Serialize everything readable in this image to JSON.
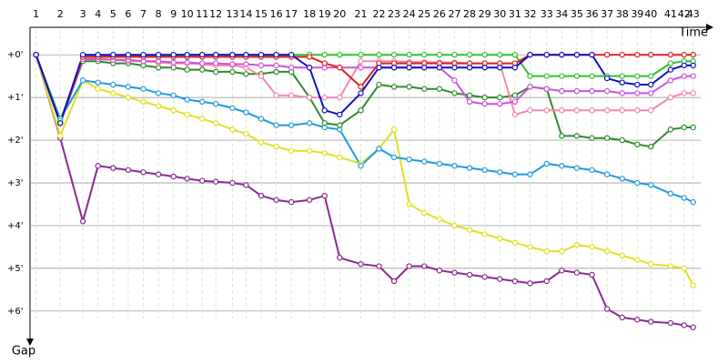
{
  "chart_data": {
    "type": "line",
    "x_label": "Time",
    "y_label": "Gap",
    "xlim": [
      0,
      45
    ],
    "ylim": [
      6.6,
      -0.6
    ],
    "grid": true,
    "xticks": [
      {
        "value": 0.4,
        "label": "1"
      },
      {
        "value": 2.0,
        "label": "2"
      },
      {
        "value": 3.5,
        "label": "3"
      },
      {
        "value": 4.5,
        "label": "4"
      },
      {
        "value": 5.5,
        "label": "5"
      },
      {
        "value": 6.5,
        "label": "6"
      },
      {
        "value": 7.5,
        "label": "7"
      },
      {
        "value": 8.5,
        "label": "8"
      },
      {
        "value": 9.5,
        "label": "9"
      },
      {
        "value": 10.4,
        "label": "10"
      },
      {
        "value": 11.4,
        "label": "11"
      },
      {
        "value": 12.3,
        "label": "12"
      },
      {
        "value": 13.4,
        "label": "13"
      },
      {
        "value": 14.3,
        "label": "14"
      },
      {
        "value": 15.3,
        "label": "15"
      },
      {
        "value": 16.3,
        "label": "16"
      },
      {
        "value": 17.3,
        "label": "17"
      },
      {
        "value": 18.5,
        "label": "18"
      },
      {
        "value": 19.5,
        "label": "19"
      },
      {
        "value": 20.5,
        "label": "20"
      },
      {
        "value": 21.9,
        "label": "21"
      },
      {
        "value": 23.1,
        "label": "22"
      },
      {
        "value": 24.1,
        "label": "23"
      },
      {
        "value": 25.1,
        "label": "24"
      },
      {
        "value": 26.1,
        "label": "25"
      },
      {
        "value": 27.1,
        "label": "26"
      },
      {
        "value": 28.1,
        "label": "27"
      },
      {
        "value": 29.1,
        "label": "28"
      },
      {
        "value": 30.1,
        "label": "29"
      },
      {
        "value": 31.1,
        "label": "30"
      },
      {
        "value": 32.1,
        "label": "31"
      },
      {
        "value": 33.1,
        "label": "32"
      },
      {
        "value": 34.2,
        "label": "33"
      },
      {
        "value": 35.2,
        "label": "34"
      },
      {
        "value": 36.2,
        "label": "35"
      },
      {
        "value": 37.2,
        "label": "36"
      },
      {
        "value": 38.2,
        "label": "37"
      },
      {
        "value": 39.2,
        "label": "38"
      },
      {
        "value": 40.2,
        "label": "39"
      },
      {
        "value": 41.1,
        "label": "40"
      },
      {
        "value": 42.4,
        "label": "41"
      },
      {
        "value": 43.3,
        "label": "42"
      },
      {
        "value": 43.9,
        "label": "43"
      }
    ],
    "yticks": [
      {
        "value": 0,
        "label": "+0'"
      },
      {
        "value": 1,
        "label": "+1'"
      },
      {
        "value": 2,
        "label": "+2'"
      },
      {
        "value": 3,
        "label": "+3'"
      },
      {
        "value": 4,
        "label": "+4'"
      },
      {
        "value": 5,
        "label": "+5'"
      },
      {
        "value": 6,
        "label": "+6'"
      }
    ],
    "x": [
      0.4,
      2.0,
      3.5,
      4.5,
      5.5,
      6.5,
      7.5,
      8.5,
      9.5,
      10.4,
      11.4,
      12.3,
      13.4,
      14.3,
      15.3,
      16.3,
      17.3,
      18.5,
      19.5,
      20.5,
      21.9,
      23.1,
      24.1,
      25.1,
      26.1,
      27.1,
      28.1,
      29.1,
      30.1,
      31.1,
      32.1,
      33.1,
      34.2,
      35.2,
      36.2,
      37.2,
      38.2,
      39.2,
      40.2,
      41.1,
      42.4,
      43.3,
      43.9
    ],
    "series": [
      {
        "color": "#8b2a8f",
        "values": [
          0,
          1.95,
          3.9,
          2.6,
          2.65,
          2.7,
          2.75,
          2.8,
          2.85,
          2.9,
          2.95,
          2.97,
          3.0,
          3.05,
          3.3,
          3.4,
          3.45,
          3.4,
          3.3,
          4.75,
          4.9,
          4.95,
          5.3,
          4.95,
          4.95,
          5.05,
          5.1,
          5.15,
          5.2,
          5.25,
          5.3,
          5.35,
          5.3,
          5.05,
          5.1,
          5.15,
          5.95,
          6.15,
          6.2,
          6.25,
          6.28,
          6.33,
          6.38
        ]
      },
      {
        "color": "#e0e020",
        "values": [
          0,
          1.9,
          0.6,
          0.8,
          0.9,
          1.0,
          1.1,
          1.2,
          1.3,
          1.4,
          1.5,
          1.6,
          1.75,
          1.85,
          2.05,
          2.15,
          2.25,
          2.25,
          2.3,
          2.4,
          2.55,
          2.2,
          1.75,
          3.5,
          3.7,
          3.85,
          4.0,
          4.1,
          4.2,
          4.3,
          4.4,
          4.5,
          4.6,
          4.6,
          4.45,
          4.5,
          4.6,
          4.7,
          4.8,
          4.9,
          4.95,
          5.0,
          5.4
        ]
      },
      {
        "color": "#1e9be0",
        "values": [
          0,
          1.5,
          0.6,
          0.65,
          0.7,
          0.75,
          0.8,
          0.9,
          0.95,
          1.05,
          1.1,
          1.15,
          1.25,
          1.35,
          1.5,
          1.65,
          1.65,
          1.6,
          1.7,
          1.75,
          2.6,
          2.2,
          2.4,
          2.45,
          2.5,
          2.55,
          2.6,
          2.65,
          2.7,
          2.75,
          2.8,
          2.8,
          2.55,
          2.6,
          2.65,
          2.7,
          2.8,
          2.9,
          3.0,
          3.05,
          3.25,
          3.35,
          3.45
        ]
      },
      {
        "color": "#2e8b2e",
        "values": [
          0,
          1.6,
          0.15,
          0.15,
          0.2,
          0.2,
          0.25,
          0.3,
          0.3,
          0.35,
          0.35,
          0.4,
          0.4,
          0.45,
          0.45,
          0.4,
          0.4,
          1.0,
          1.6,
          1.65,
          1.3,
          0.7,
          0.75,
          0.75,
          0.8,
          0.8,
          0.9,
          0.95,
          1.0,
          1.0,
          0.95,
          0.75,
          0.8,
          1.9,
          1.9,
          1.95,
          1.95,
          2.0,
          2.1,
          2.15,
          1.75,
          1.7,
          1.7
        ]
      },
      {
        "color": "#f48aa8",
        "values": [
          0,
          1.6,
          0.1,
          0.1,
          0.12,
          0.15,
          0.15,
          0.18,
          0.2,
          0.2,
          0.22,
          0.25,
          0.25,
          0.3,
          0.5,
          0.95,
          0.95,
          1.0,
          1.0,
          1.0,
          0.15,
          0.15,
          0.15,
          0.17,
          0.17,
          0.18,
          0.18,
          0.2,
          0.2,
          0.2,
          1.4,
          1.3,
          1.3,
          1.3,
          1.3,
          1.3,
          1.3,
          1.3,
          1.3,
          1.3,
          1.0,
          0.9,
          0.9
        ]
      },
      {
        "color": "#d050e0",
        "values": [
          0,
          1.6,
          0.1,
          0.1,
          0.12,
          0.12,
          0.15,
          0.15,
          0.18,
          0.18,
          0.2,
          0.2,
          0.22,
          0.22,
          0.25,
          0.25,
          0.3,
          0.3,
          0.3,
          0.3,
          0.3,
          0.3,
          0.3,
          0.3,
          0.3,
          0.3,
          0.6,
          1.1,
          1.15,
          1.15,
          1.1,
          0.75,
          0.8,
          0.85,
          0.85,
          0.85,
          0.85,
          0.9,
          0.9,
          0.9,
          0.6,
          0.5,
          0.5
        ]
      },
      {
        "color": "#30c030",
        "values": [
          0,
          1.55,
          0.05,
          0.03,
          0.02,
          0.02,
          0.02,
          0.02,
          0,
          0,
          0,
          0,
          0,
          0,
          0,
          0,
          0,
          0,
          0,
          0,
          0,
          0,
          0,
          0,
          0,
          0,
          0,
          0,
          0,
          0,
          0,
          0.5,
          0.5,
          0.5,
          0.5,
          0.5,
          0.5,
          0.5,
          0.5,
          0.5,
          0.2,
          0.15,
          0.15
        ]
      },
      {
        "color": "#e02020",
        "values": [
          0,
          1.6,
          0.05,
          0.05,
          0.05,
          0.05,
          0.05,
          0.05,
          0.05,
          0.05,
          0.05,
          0.05,
          0.05,
          0.05,
          0.05,
          0.05,
          0.05,
          0.05,
          0.2,
          0.3,
          0.75,
          0.2,
          0.2,
          0.2,
          0.2,
          0.2,
          0.2,
          0.2,
          0.2,
          0.2,
          0.2,
          0,
          0,
          0,
          0,
          0,
          0,
          0,
          0,
          0,
          0,
          0,
          0
        ]
      },
      {
        "color": "#1010c0",
        "values": [
          0,
          1.6,
          0,
          0,
          0,
          0,
          0,
          0,
          0,
          0,
          0,
          0,
          0,
          0,
          0,
          0,
          0,
          0.3,
          1.3,
          1.4,
          0.9,
          0.3,
          0.3,
          0.3,
          0.3,
          0.3,
          0.3,
          0.3,
          0.3,
          0.3,
          0.3,
          0,
          0,
          0,
          0,
          0,
          0.55,
          0.65,
          0.7,
          0.7,
          0.35,
          0.25,
          0.25
        ]
      }
    ]
  }
}
